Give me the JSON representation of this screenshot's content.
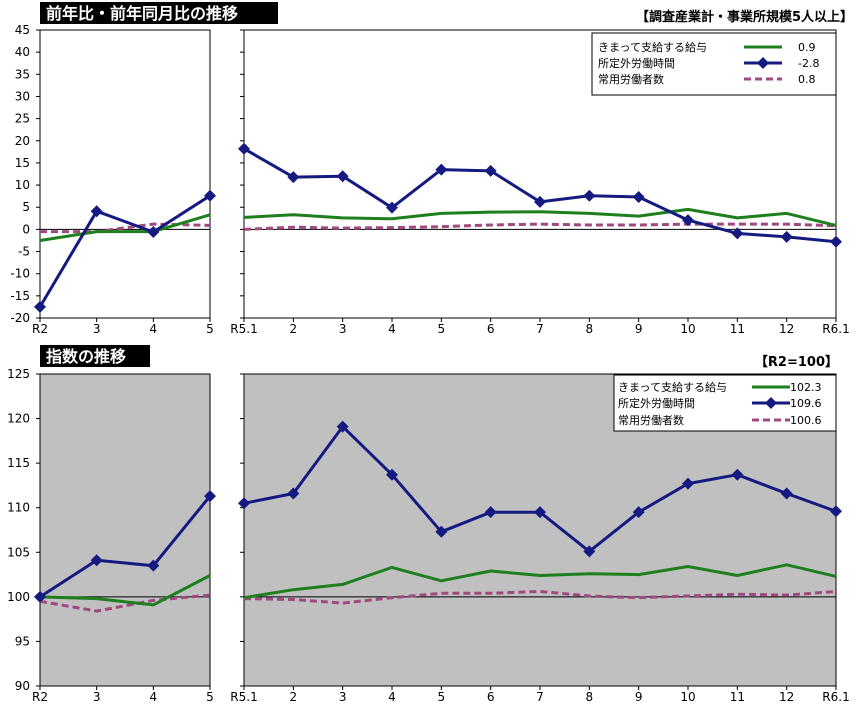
{
  "top": {
    "title": "前年比・前年同月比の推移",
    "note": "【調査産業計・事業所規模5人以上】",
    "unit": "(%)"
  },
  "bottom": {
    "title": "指数の推移",
    "note": "【R2=100】"
  },
  "chart_data": [
    {
      "type": "line",
      "ylim": [
        -20,
        45
      ],
      "yticks": [
        -20,
        -15,
        -10,
        -5,
        0,
        5,
        10,
        15,
        20,
        25,
        30,
        35,
        40,
        45
      ],
      "grid": false,
      "legend_position": "top-right",
      "background": "#ffffff",
      "panels": [
        {
          "categories": [
            "R2",
            "3",
            "4",
            "5"
          ],
          "series": [
            {
              "name": "きまって支給する給与",
              "values": [
                -2.5,
                -0.5,
                -0.5,
                3.3
              ]
            },
            {
              "name": "所定外労働時間",
              "values": [
                -17.5,
                4.1,
                -0.6,
                7.6
              ]
            },
            {
              "name": "常用労働者数",
              "values": [
                -0.5,
                -0.5,
                1.2,
                0.9
              ]
            }
          ]
        },
        {
          "categories": [
            "R5.1",
            "2",
            "3",
            "4",
            "5",
            "6",
            "7",
            "8",
            "9",
            "10",
            "11",
            "12",
            "R6.1"
          ],
          "series": [
            {
              "name": "きまって支給する給与",
              "values": [
                2.7,
                3.3,
                2.6,
                2.4,
                3.6,
                3.9,
                4.0,
                3.6,
                3.0,
                4.5,
                2.6,
                3.6,
                0.9
              ]
            },
            {
              "name": "所定外労働時間",
              "values": [
                18.2,
                11.8,
                12.0,
                4.9,
                13.5,
                13.2,
                6.2,
                7.6,
                7.3,
                2.1,
                -0.9,
                -1.7,
                -2.8
              ]
            },
            {
              "name": "常用労働者数",
              "values": [
                0.0,
                0.5,
                0.3,
                0.4,
                0.6,
                1.0,
                1.2,
                1.0,
                1.0,
                1.2,
                1.2,
                1.2,
                0.8
              ]
            }
          ]
        }
      ],
      "legend": [
        {
          "name": "きまって支給する給与",
          "value": "0.9"
        },
        {
          "name": "所定外労働時間",
          "value": "-2.8"
        },
        {
          "name": "常用労働者数",
          "value": "0.8"
        }
      ]
    },
    {
      "type": "line",
      "ylim": [
        90,
        125
      ],
      "yticks": [
        90,
        95,
        100,
        105,
        110,
        115,
        120,
        125
      ],
      "grid": false,
      "legend_position": "top-right",
      "background": "#c0c0c0",
      "panels": [
        {
          "categories": [
            "R2",
            "3",
            "4",
            "5"
          ],
          "series": [
            {
              "name": "きまって支給する給与",
              "values": [
                100.0,
                99.8,
                99.1,
                102.4
              ]
            },
            {
              "name": "所定外労働時間",
              "values": [
                100.0,
                104.1,
                103.5,
                111.3
              ]
            },
            {
              "name": "常用労働者数",
              "values": [
                99.5,
                98.4,
                99.6,
                100.2
              ]
            }
          ]
        },
        {
          "categories": [
            "R5.1",
            "2",
            "3",
            "4",
            "5",
            "6",
            "7",
            "8",
            "9",
            "10",
            "11",
            "12",
            "R6.1"
          ],
          "series": [
            {
              "name": "きまって支給する給与",
              "values": [
                99.9,
                100.8,
                101.4,
                103.3,
                101.8,
                102.9,
                102.4,
                102.6,
                102.5,
                103.4,
                102.4,
                103.6,
                102.3
              ]
            },
            {
              "name": "所定外労働時間",
              "values": [
                110.5,
                111.6,
                119.1,
                113.7,
                107.3,
                109.5,
                109.5,
                105.1,
                109.5,
                112.7,
                113.7,
                111.6,
                109.6
              ]
            },
            {
              "name": "常用労働者数",
              "values": [
                99.8,
                99.7,
                99.3,
                99.9,
                100.4,
                100.4,
                100.6,
                100.1,
                99.9,
                100.1,
                100.3,
                100.2,
                100.6
              ]
            }
          ]
        }
      ],
      "legend": [
        {
          "name": "きまって支給する給与",
          "value": "102.3"
        },
        {
          "name": "所定外労働時間",
          "value": "109.6"
        },
        {
          "name": "常用労働者数",
          "value": "100.6"
        }
      ]
    }
  ],
  "colors": {
    "wage": "#1e7f1e",
    "hours": "#141a80",
    "employees": "#a04880",
    "axis": "#000000",
    "title_bg": "#000000",
    "title_fg": "#ffffff",
    "plot_bg_index": "#c0c0c0"
  }
}
